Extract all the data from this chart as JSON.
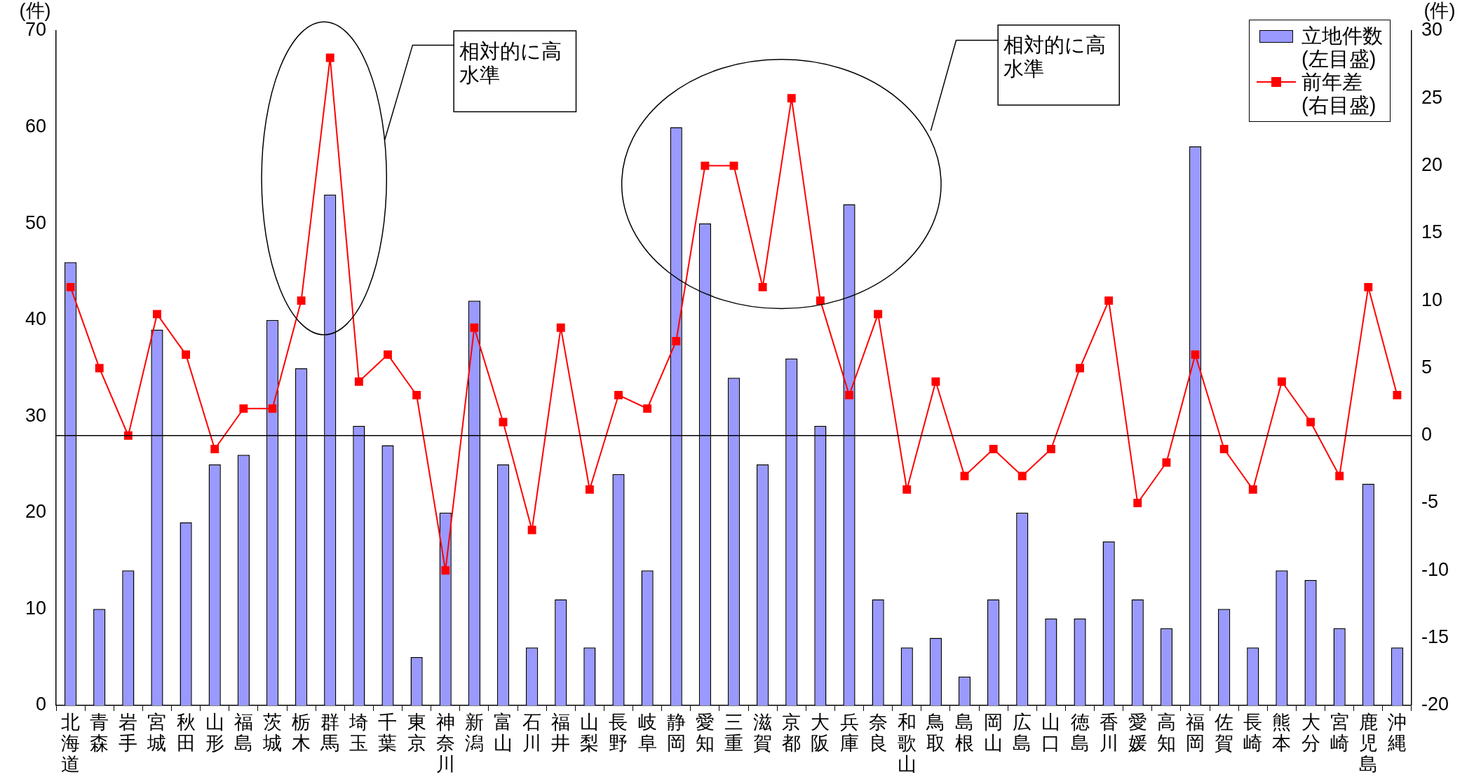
{
  "chart_data": {
    "type": "bar",
    "ylabel": "(件)",
    "y2label": "(件)",
    "legend": "top right",
    "categories": [
      "北海道",
      "青森",
      "岩手",
      "宮城",
      "秋田",
      "山形",
      "福島",
      "茨城",
      "栃木",
      "群馬",
      "埼玉",
      "千葉",
      "東京",
      "神奈川",
      "新潟",
      "富山",
      "石川",
      "福井",
      "山梨",
      "長野",
      "岐阜",
      "静岡",
      "愛知",
      "三重",
      "滋賀",
      "京都",
      "大阪",
      "兵庫",
      "奈良",
      "和歌山",
      "鳥取",
      "島根",
      "岡山",
      "広島",
      "山口",
      "徳島",
      "香川",
      "愛媛",
      "高知",
      "福岡",
      "佐賀",
      "長崎",
      "熊本",
      "大分",
      "宮崎",
      "鹿児島",
      "沖縄"
    ],
    "series": [
      {
        "name": "立地件数\n(左目盛)",
        "color": "#9999ff",
        "values": [
          46,
          10,
          14,
          39,
          19,
          25,
          26,
          40,
          35,
          53,
          29,
          27,
          5,
          20,
          42,
          25,
          6,
          11,
          6,
          24,
          14,
          60,
          50,
          34,
          25,
          36,
          29,
          52,
          11,
          6,
          7,
          3,
          11,
          20,
          9,
          9,
          17,
          11,
          8,
          58,
          10,
          6,
          14,
          13,
          8,
          23,
          6
        ]
      },
      {
        "name": "前年差\n(右目盛)",
        "type": "line",
        "axis": "y2",
        "marker": "square",
        "color": "#ff0000",
        "values": [
          11,
          5,
          0,
          9,
          6,
          -1,
          2,
          2,
          10,
          28,
          4,
          6,
          3,
          -10,
          8,
          1,
          -7,
          8,
          -4,
          3,
          2,
          7,
          20,
          20,
          11,
          25,
          10,
          3,
          9,
          -4,
          4,
          -3,
          -1,
          -3,
          -1,
          5,
          10,
          -5,
          -2,
          6,
          -1,
          -4,
          4,
          1,
          -3,
          11,
          3
        ]
      }
    ],
    "ylim": [
      0,
      70
    ],
    "yticks": [
      0,
      10,
      20,
      30,
      40,
      50,
      60,
      70
    ],
    "y2lim": [
      -20,
      30
    ],
    "y2ticks": [
      -20,
      -15,
      -10,
      -5,
      0,
      5,
      10,
      15,
      20,
      25,
      30
    ],
    "ref_lines": [
      {
        "axis": "y2",
        "value": 0,
        "color": "#000000"
      }
    ],
    "annotations": [
      "相対的に高水準",
      "相対的に高水準"
    ]
  }
}
